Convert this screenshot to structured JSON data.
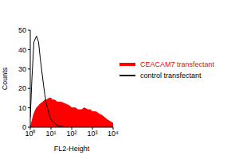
{
  "chart_data": {
    "type": "area",
    "x_label": "FL2-Height",
    "y_label": "Counts",
    "log": "x",
    "grid": false,
    "legend": "right",
    "xlim": [
      1,
      10000
    ],
    "xticks": [
      {
        "value": 1,
        "label": "10⁰"
      },
      {
        "value": 10,
        "label": "10¹"
      },
      {
        "value": 100,
        "label": "10²"
      },
      {
        "value": 1000,
        "label": "10³"
      },
      {
        "value": 10000,
        "label": "10⁴"
      }
    ],
    "ylim": [
      0,
      50
    ],
    "yticks": [
      0,
      10,
      20,
      30,
      40,
      50
    ],
    "x": [
      1,
      1.2,
      1.5,
      2,
      2.5,
      3,
      4,
      5,
      6,
      8,
      10,
      12,
      15,
      20,
      30,
      50,
      80,
      100,
      150,
      200,
      300,
      400,
      600,
      800,
      1000,
      1500,
      2000,
      3000,
      5000,
      7000,
      10000
    ],
    "series": [
      {
        "name": "CEACAM7 transfectant",
        "type": "area",
        "color": "#ff0000",
        "values": [
          0,
          3,
          7,
          10,
          11,
          12,
          13,
          14,
          14,
          15,
          15,
          14,
          14,
          13,
          13,
          12,
          11,
          10,
          10,
          9,
          9,
          10,
          9,
          9,
          8,
          8,
          7,
          6,
          4,
          3,
          2
        ]
      },
      {
        "name": "control transfectant",
        "type": "line",
        "color": "#000000",
        "values": [
          5,
          25,
          44,
          47,
          44,
          36,
          25,
          17,
          12,
          7,
          4,
          3,
          2,
          1,
          0.5,
          0,
          0,
          0,
          0,
          0,
          0,
          0,
          0,
          0,
          0,
          0,
          0,
          0,
          0,
          0,
          0
        ]
      }
    ]
  }
}
